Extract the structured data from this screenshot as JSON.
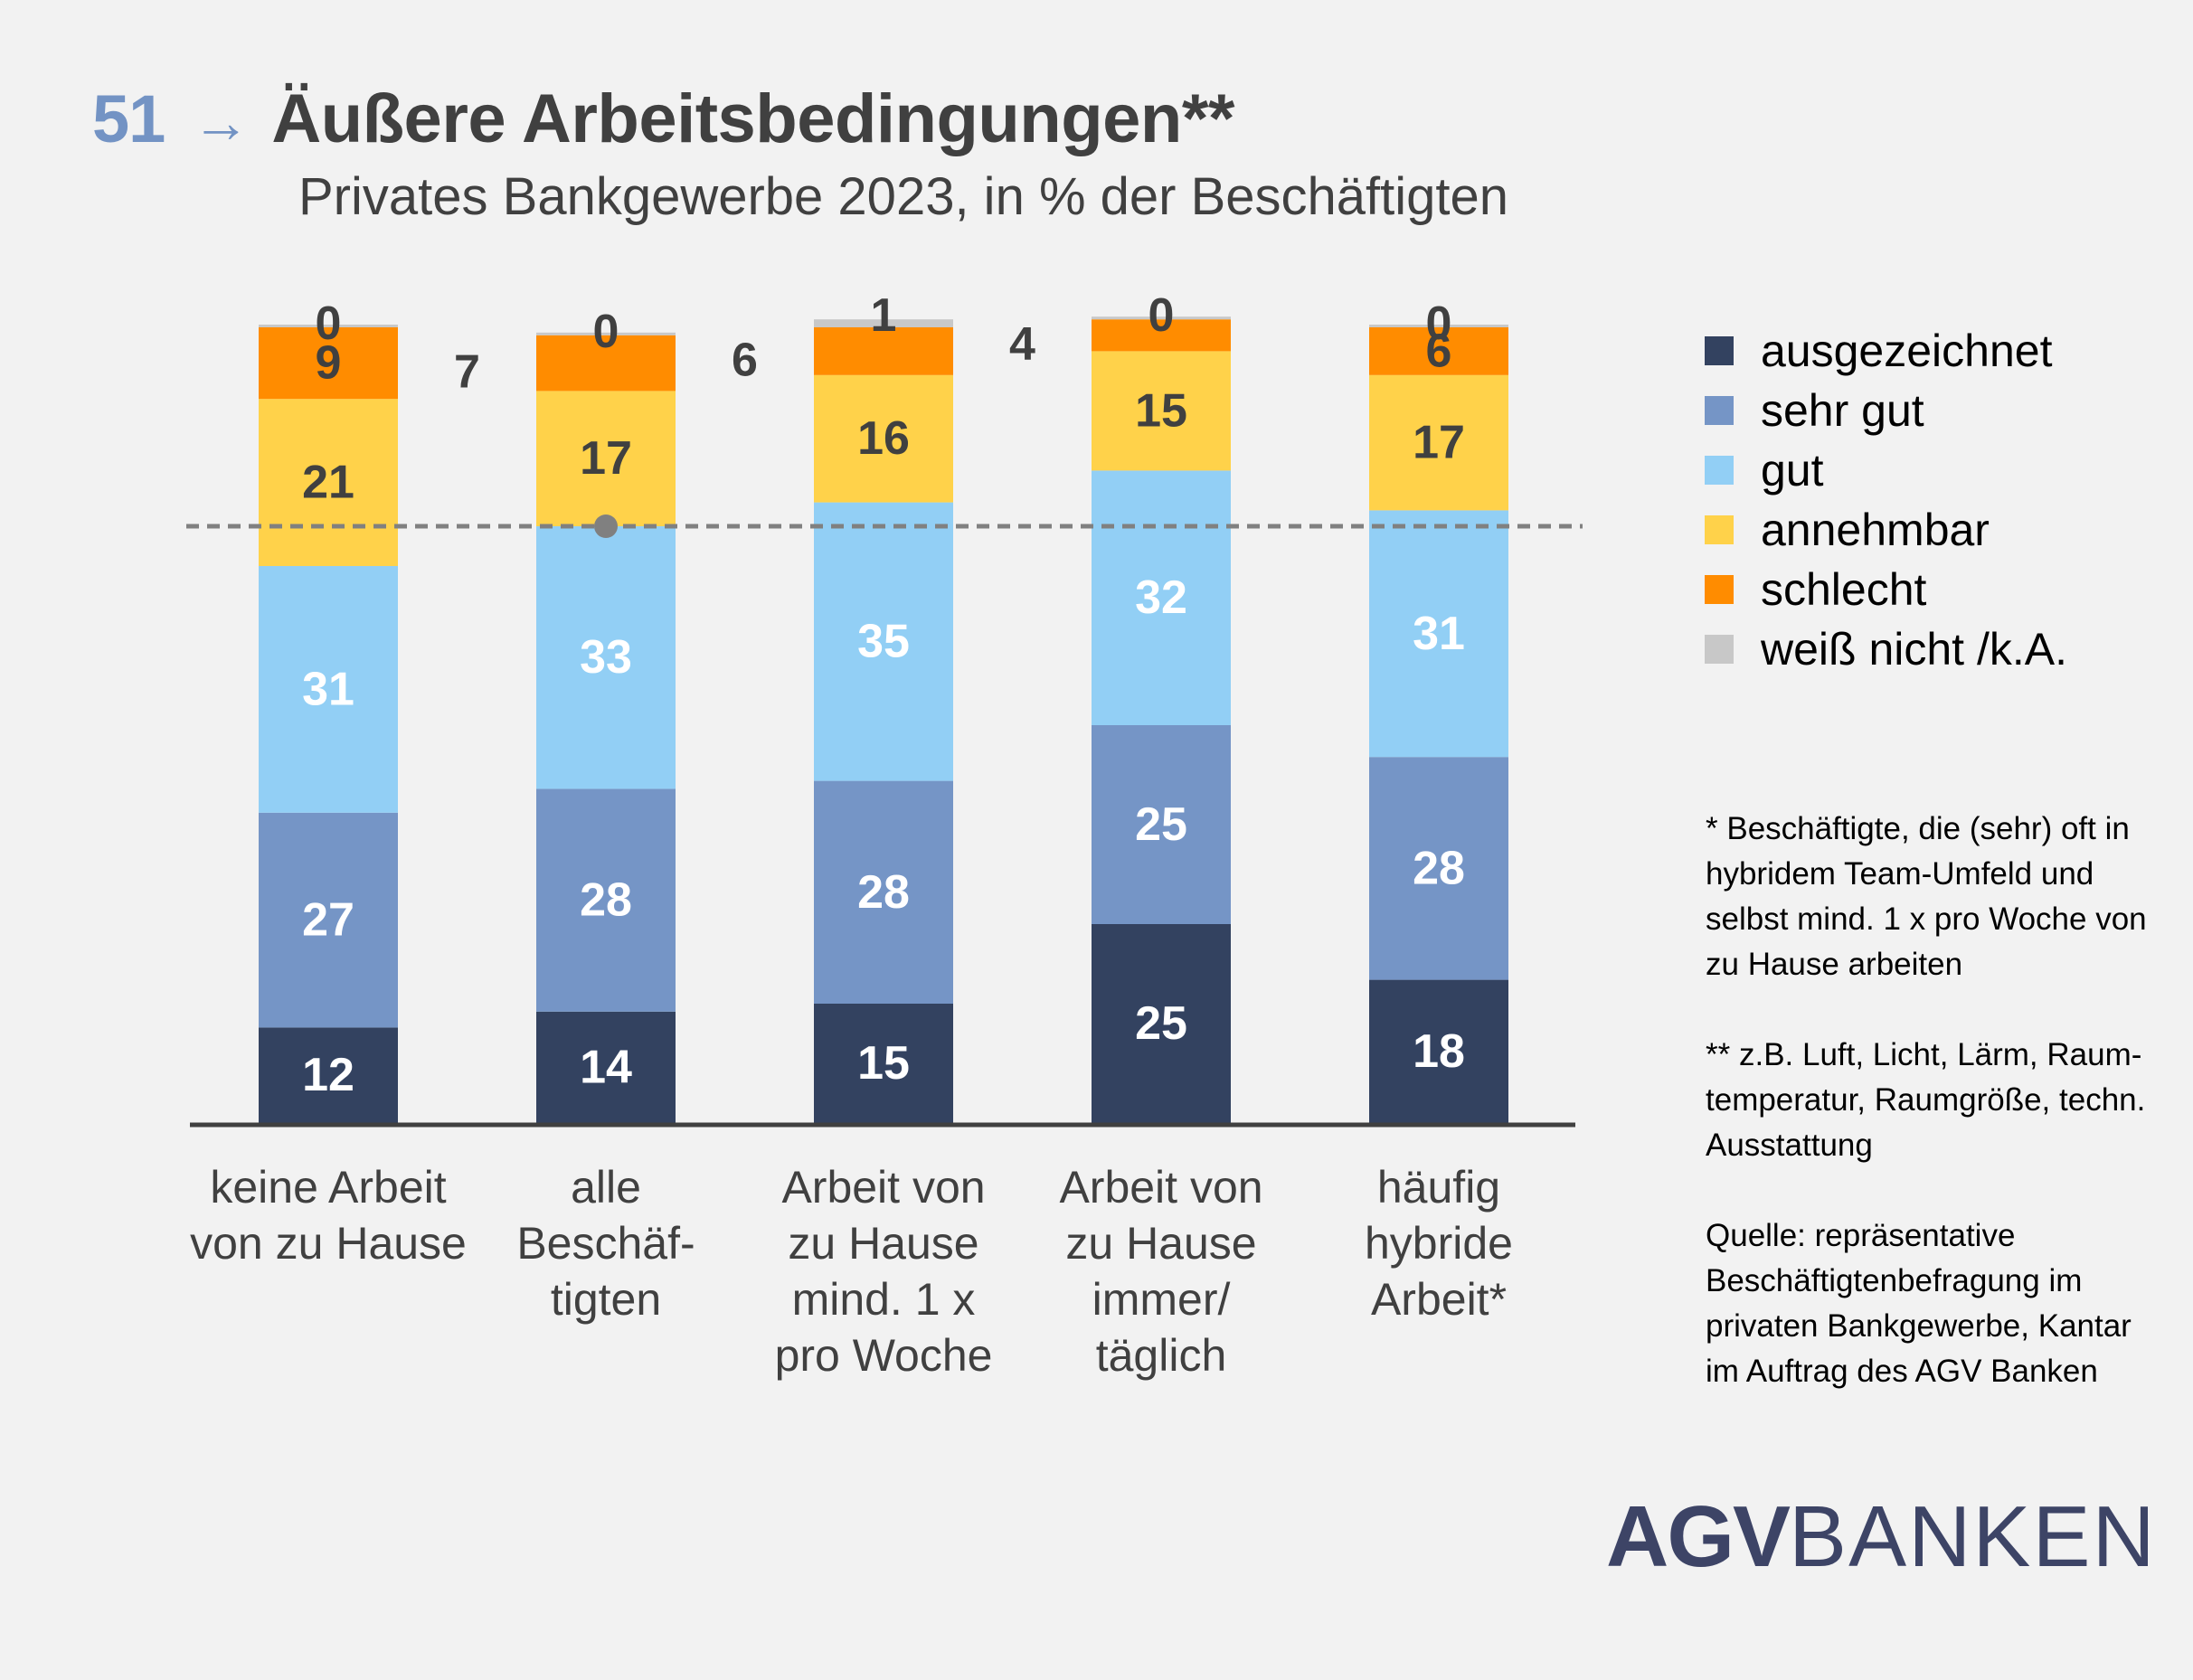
{
  "header": {
    "chart_number": "51",
    "arrow": "→",
    "title": "Äußere Arbeitsbedingungen**",
    "subtitle": "Privates Bankgewerbe 2023, in % der Beschäftigten"
  },
  "chart_data": {
    "type": "bar",
    "stacked": true,
    "title": "Äußere Arbeitsbedingungen**",
    "subtitle": "Privates Bankgewerbe 2023, in % der Beschäftigten",
    "xlabel": "",
    "ylabel": "",
    "ylim": [
      0,
      100
    ],
    "grid": false,
    "legend_position": "right",
    "categories": [
      [
        "keine Arbeit",
        "von zu Hause"
      ],
      [
        "alle",
        "Beschäf-",
        "tigten"
      ],
      [
        "Arbeit von",
        "zu Hause",
        "mind. 1 x",
        "pro Woche"
      ],
      [
        "Arbeit von",
        "zu Hause",
        "immer/",
        "täglich"
      ],
      [
        "häufig",
        "hybride",
        "Arbeit*"
      ]
    ],
    "series": [
      {
        "name": "ausgezeichnet",
        "color": "#334260",
        "label_color": "#ffffff",
        "values": [
          12,
          14,
          15,
          25,
          18
        ]
      },
      {
        "name": "sehr gut",
        "color": "#7595c6",
        "label_color": "#ffffff",
        "values": [
          27,
          28,
          28,
          25,
          28
        ]
      },
      {
        "name": "gut",
        "color": "#92cff5",
        "label_color": "#ffffff",
        "values": [
          31,
          33,
          35,
          32,
          31
        ]
      },
      {
        "name": "annehmbar",
        "color": "#ffd24a",
        "label_color": "#404040",
        "values": [
          21,
          17,
          16,
          15,
          17
        ]
      },
      {
        "name": "schlecht",
        "color": "#ff8c00",
        "label_color": "#404040",
        "values": [
          9,
          7,
          6,
          4,
          6
        ],
        "label_outside": [
          false,
          true,
          true,
          true,
          false
        ]
      },
      {
        "name": "weiß nicht /k.A.",
        "color": "#c8c8c8",
        "label_color": "#404040",
        "values": [
          0,
          0,
          1,
          0,
          0
        ]
      }
    ],
    "reference_line": {
      "value": 75,
      "style": "dashed",
      "color": "#808080",
      "marker_category_index": 1
    }
  },
  "notes": [
    "* Beschäftigte, die (sehr) oft in\nhybridem Team-Umfeld und\nselbst mind. 1 x pro Woche von\nzu Hause arbeiten",
    "** z.B. Luft, Licht, Lärm, Raum-\ntemperatur, Raumgröße, techn.\nAusstattung",
    "Quelle: repräsentative\nBeschäftigtenbefragung im\nprivaten Bankgewerbe, Kantar\nim Auftrag des AGV Banken"
  ],
  "logo": {
    "bold": "AGV",
    "light": "BANKEN",
    "color": "#3d4466"
  }
}
